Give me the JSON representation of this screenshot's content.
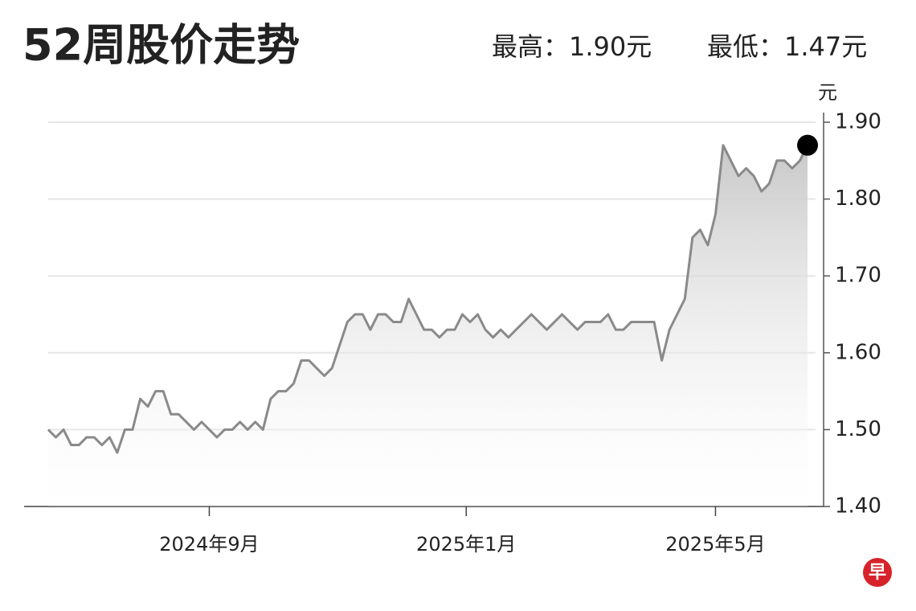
{
  "chart_data": {
    "type": "line",
    "title": "52周股价走势",
    "high_label": "最高：1.90元",
    "low_label": "最低：1.47元",
    "y_unit": "元",
    "logo": "早",
    "x": [
      0,
      1,
      2,
      3,
      4,
      5,
      6,
      7,
      8,
      9,
      10,
      11,
      12,
      13,
      14,
      15,
      16,
      17,
      18,
      19,
      20,
      21,
      22,
      23,
      24,
      25,
      26,
      27,
      28,
      29,
      30,
      31,
      32,
      33,
      34,
      35,
      36,
      37,
      38,
      39,
      40,
      41,
      42,
      43,
      44,
      45,
      46,
      47,
      48,
      49,
      50,
      51,
      52,
      53,
      54,
      55,
      56,
      57,
      58,
      59,
      60,
      61,
      62,
      63,
      64,
      65,
      66,
      67,
      68,
      69,
      70,
      71,
      72,
      73,
      74,
      75,
      76,
      77,
      78,
      79,
      80,
      81,
      82,
      83,
      84,
      85,
      86,
      87,
      88,
      89,
      90,
      91,
      92,
      93,
      94,
      95,
      96,
      97,
      98,
      99
    ],
    "series": [
      {
        "color": "#8a8a8a",
        "values": [
          1.5,
          1.49,
          1.5,
          1.48,
          1.48,
          1.49,
          1.49,
          1.48,
          1.49,
          1.47,
          1.5,
          1.5,
          1.54,
          1.53,
          1.55,
          1.55,
          1.52,
          1.52,
          1.51,
          1.5,
          1.51,
          1.5,
          1.49,
          1.5,
          1.5,
          1.51,
          1.5,
          1.51,
          1.5,
          1.54,
          1.55,
          1.55,
          1.56,
          1.59,
          1.59,
          1.58,
          1.57,
          1.58,
          1.61,
          1.64,
          1.65,
          1.65,
          1.63,
          1.65,
          1.65,
          1.64,
          1.64,
          1.67,
          1.65,
          1.63,
          1.63,
          1.62,
          1.63,
          1.63,
          1.65,
          1.64,
          1.65,
          1.63,
          1.62,
          1.63,
          1.62,
          1.63,
          1.64,
          1.65,
          1.64,
          1.63,
          1.64,
          1.65,
          1.64,
          1.63,
          1.64,
          1.64,
          1.64,
          1.65,
          1.63,
          1.63,
          1.64,
          1.64,
          1.64,
          1.64,
          1.59,
          1.63,
          1.65,
          1.67,
          1.75,
          1.76,
          1.74,
          1.78,
          1.87,
          1.85,
          1.83,
          1.84,
          1.83,
          1.81,
          1.82,
          1.85,
          1.85,
          1.84,
          1.85,
          1.87
        ]
      }
    ],
    "xlim": [
      0,
      99
    ],
    "xticks": [
      {
        "value": 21,
        "label": "2024年9月"
      },
      {
        "value": 54.5,
        "label": "2025年1月"
      },
      {
        "value": 87,
        "label": "2025年5月"
      }
    ],
    "ylim": [
      1.4,
      1.9
    ],
    "yticks": [
      {
        "value": 1.4,
        "label": "1.40"
      },
      {
        "value": 1.5,
        "label": "1.50"
      },
      {
        "value": 1.6,
        "label": "1.60"
      },
      {
        "value": 1.7,
        "label": "1.70"
      },
      {
        "value": 1.8,
        "label": "1.80"
      },
      {
        "value": 1.9,
        "label": "1.90"
      }
    ],
    "grid": true
  }
}
